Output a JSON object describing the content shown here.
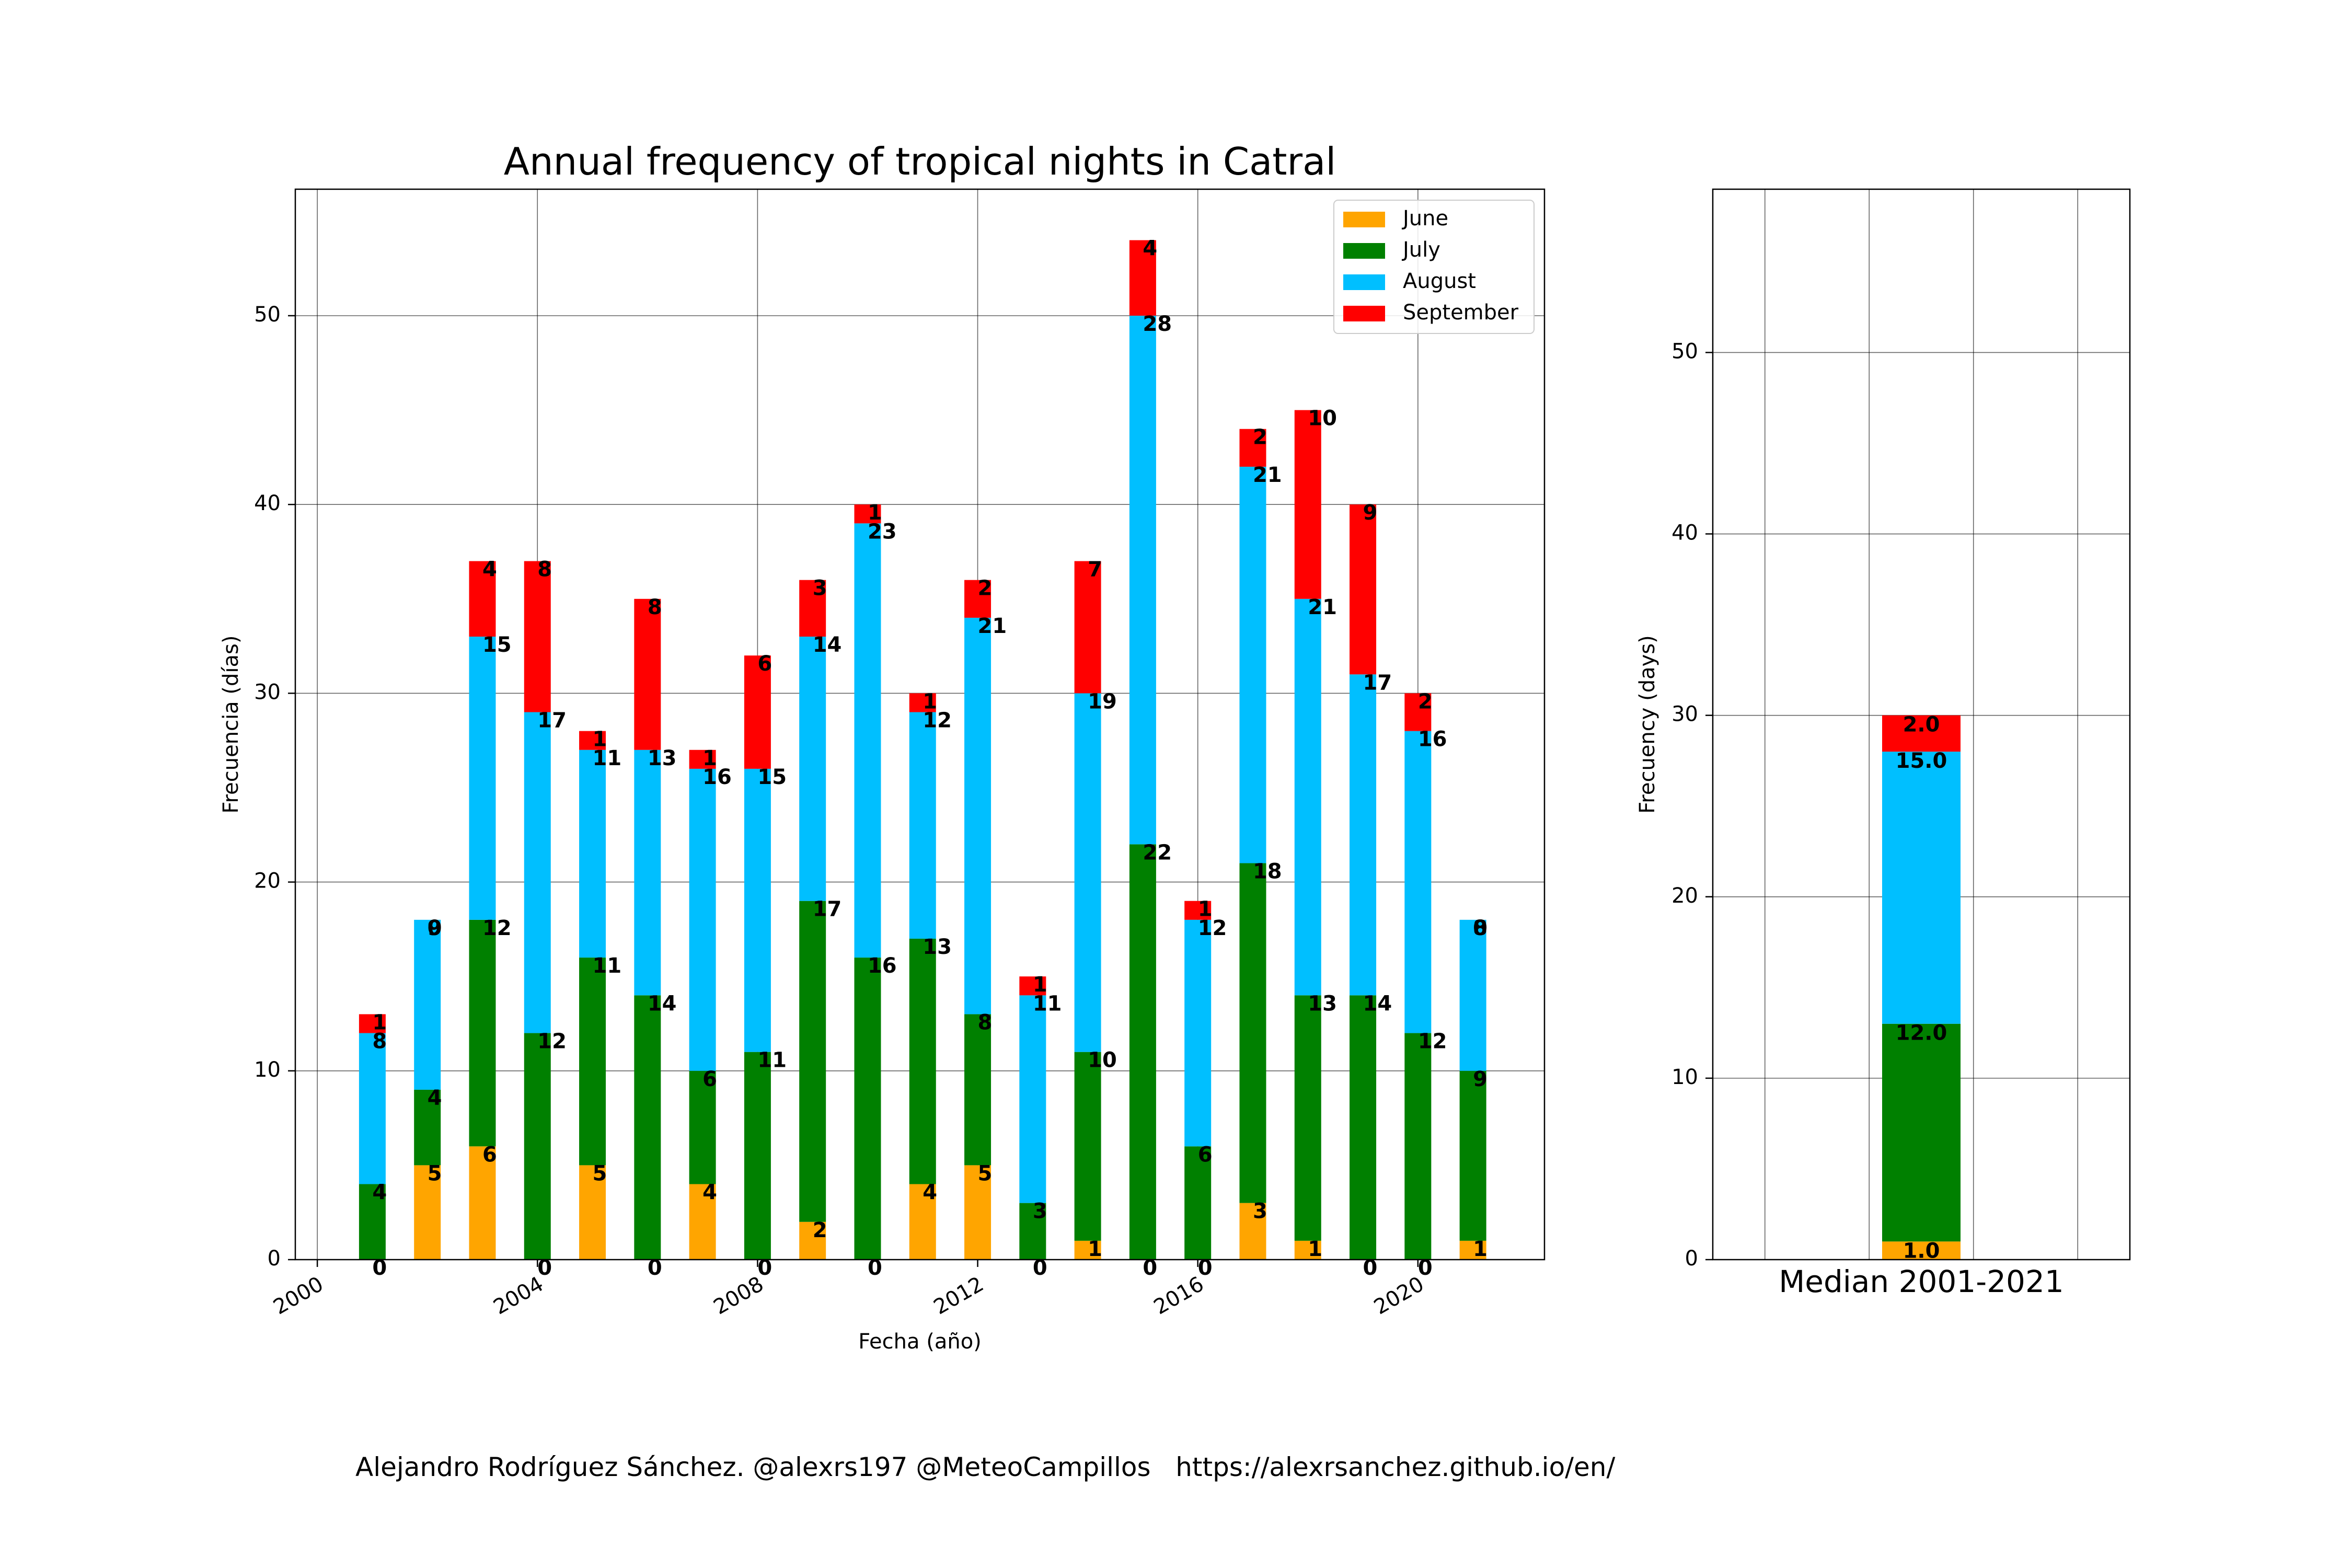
{
  "figure": {
    "footer": "Alejandro Rodríguez Sánchez. @alexrs197 @MeteoCampillos   https://alexrsanchez.github.io/en/"
  },
  "colors": {
    "June": "#ffa500",
    "July": "#008000",
    "August": "#00bfff",
    "September": "#ff0000"
  },
  "chart_data": [
    {
      "type": "bar",
      "stacked": true,
      "title": "Annual frequency of tropical nights in Catral",
      "xlabel": "Fecha (año)",
      "ylabel": "Frecuencia (días)",
      "xlim": [
        1999.6,
        2022.3
      ],
      "ylim": [
        0,
        56.7
      ],
      "xticks": [
        "2000",
        "2004",
        "2008",
        "2012",
        "2016",
        "2020"
      ],
      "yticks": [
        "0",
        "10",
        "20",
        "30",
        "40",
        "50"
      ],
      "grid": true,
      "legend": "top-right",
      "x": [
        2001,
        2002,
        2003,
        2004,
        2005,
        2006,
        2007,
        2008,
        2009,
        2010,
        2011,
        2012,
        2013,
        2014,
        2015,
        2016,
        2017,
        2018,
        2019,
        2020,
        2021
      ],
      "series": [
        {
          "name": "June",
          "values": [
            0,
            5,
            6,
            0,
            5,
            0,
            4,
            0,
            2,
            0,
            4,
            5,
            0,
            1,
            0,
            0,
            3,
            1,
            0,
            0,
            1
          ]
        },
        {
          "name": "July",
          "values": [
            4,
            4,
            12,
            12,
            11,
            14,
            6,
            11,
            17,
            16,
            13,
            8,
            3,
            10,
            22,
            6,
            18,
            13,
            14,
            12,
            9
          ]
        },
        {
          "name": "August",
          "values": [
            8,
            9,
            15,
            17,
            11,
            13,
            16,
            15,
            14,
            23,
            12,
            21,
            11,
            19,
            28,
            12,
            21,
            21,
            17,
            16,
            8
          ]
        },
        {
          "name": "September",
          "values": [
            1,
            0,
            4,
            8,
            1,
            8,
            1,
            6,
            3,
            1,
            1,
            2,
            1,
            7,
            4,
            1,
            2,
            10,
            9,
            2,
            0
          ]
        }
      ]
    },
    {
      "type": "bar",
      "stacked": true,
      "xlabel": "Median 2001-2021",
      "ylabel": "Frecuency (days)",
      "ylim": [
        0,
        59
      ],
      "yticks": [
        "0",
        "10",
        "20",
        "30",
        "40",
        "50"
      ],
      "grid": true,
      "values": {
        "June": 1.0,
        "July": 12.0,
        "August": 15.0,
        "September": 2.0
      },
      "value_labels": [
        "1.0",
        "12.0",
        "15.0",
        "2.0"
      ]
    }
  ]
}
